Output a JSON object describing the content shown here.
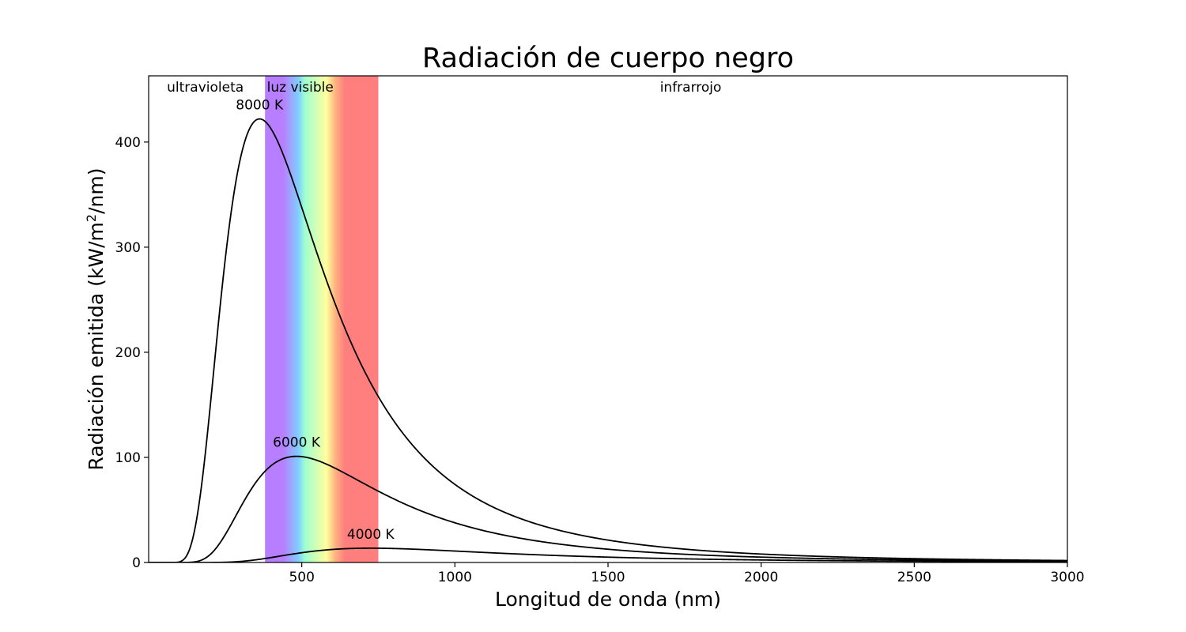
{
  "chart_data": {
    "type": "line",
    "title": "Radiación de cuerpo negro",
    "xlabel": "Longitud de onda (nm)",
    "ylabel": {
      "main": "Radiación emitida (kW/m",
      "sup": "2",
      "tail": "/nm)"
    },
    "xlim": [
      0,
      3000
    ],
    "ylim": [
      0,
      463
    ],
    "xticks": [
      500,
      1000,
      1500,
      2000,
      2500,
      3000
    ],
    "yticks": [
      0,
      100,
      200,
      300,
      400
    ],
    "grid": false,
    "regions": [
      {
        "label": "ultravioleta",
        "x_start": 0,
        "x_end": 380
      },
      {
        "label": "luz visible",
        "x_start": 380,
        "x_end": 750,
        "gradient": [
          {
            "nm": 380,
            "color": "#b77fff"
          },
          {
            "nm": 440,
            "color": "#b77fff"
          },
          {
            "nm": 490,
            "color": "#7fd0ff"
          },
          {
            "nm": 510,
            "color": "#9fffcf"
          },
          {
            "nm": 580,
            "color": "#ffff9f"
          },
          {
            "nm": 610,
            "color": "#ffb27f"
          },
          {
            "nm": 640,
            "color": "#ff7f7f"
          },
          {
            "nm": 750,
            "color": "#ff7f7f"
          }
        ]
      },
      {
        "label": "infrarrojo",
        "x_start": 750,
        "x_end": 3000
      }
    ],
    "series": [
      {
        "temperature_k": 8000,
        "label": "8000 K",
        "peak": {
          "x": 362,
          "y": 422
        }
      },
      {
        "temperature_k": 6000,
        "label": "6000 K",
        "peak": {
          "x": 483,
          "y": 101
        }
      },
      {
        "temperature_k": 4000,
        "label": "4000 K",
        "peak": {
          "x": 725,
          "y": 13.6
        }
      }
    ],
    "line_color": "#000000"
  }
}
